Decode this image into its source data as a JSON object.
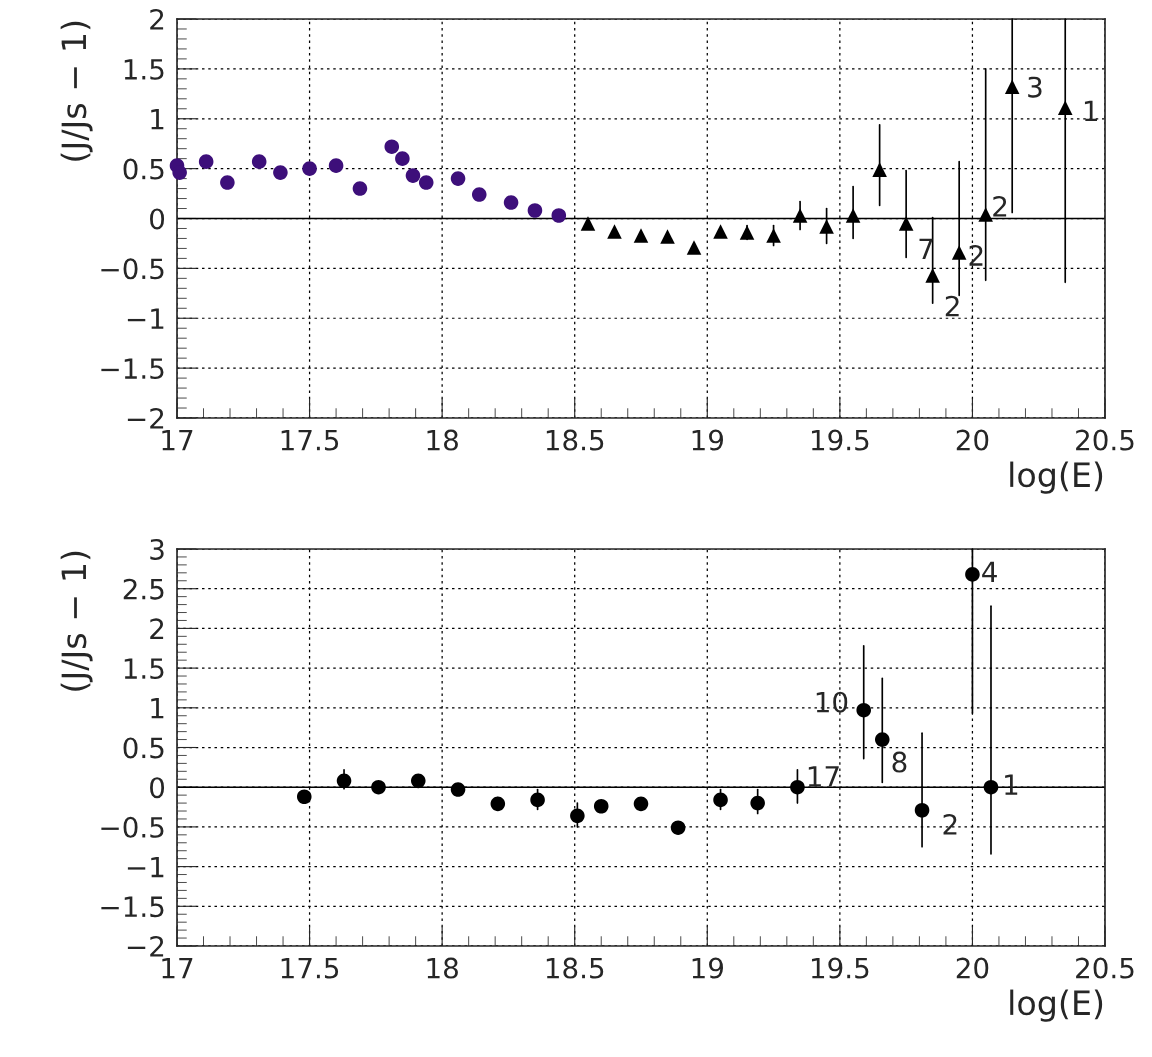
{
  "chart_data": [
    {
      "type": "scatter",
      "xlabel": "log(E)",
      "ylabel": "(J/Js − 1)",
      "xlim": [
        17,
        20.5
      ],
      "ylim": [
        -2,
        2
      ],
      "xticks": [
        17,
        17.5,
        18,
        18.5,
        19,
        19.5,
        20,
        20.5
      ],
      "yticks": [
        -2,
        -1.5,
        -1,
        -0.5,
        0,
        0.5,
        1,
        1.5,
        2
      ],
      "grid": true,
      "legend": false,
      "ref_lines": [
        {
          "axis": "y",
          "value": 0
        }
      ],
      "series": [
        {
          "color": "#3d0f7a",
          "marker": "circle",
          "x": [
            17.0,
            17.01,
            17.11,
            17.19,
            17.31,
            17.39,
            17.5,
            17.6,
            17.69,
            17.81,
            17.85,
            17.89,
            17.94,
            18.06,
            18.14,
            18.26,
            18.35,
            18.44
          ],
          "values": [
            0.53,
            0.46,
            0.57,
            0.36,
            0.57,
            0.46,
            0.5,
            0.53,
            0.3,
            0.72,
            0.6,
            0.43,
            0.36,
            0.4,
            0.24,
            0.16,
            0.08,
            0.03
          ]
        },
        {
          "color": "#000000",
          "marker": "triangle",
          "x": [
            18.55,
            18.65,
            18.75,
            18.85,
            18.95,
            19.05,
            19.15,
            19.25,
            19.35,
            19.45,
            19.55,
            19.65,
            19.75,
            19.85,
            19.95,
            20.05,
            20.15,
            20.35
          ],
          "values": [
            -0.05,
            -0.13,
            -0.17,
            -0.18,
            -0.29,
            -0.13,
            -0.14,
            -0.17,
            0.03,
            -0.08,
            0.03,
            0.49,
            -0.05,
            -0.57,
            -0.34,
            0.04,
            1.32,
            1.11
          ],
          "errors": [
            null,
            null,
            null,
            null,
            null,
            null,
            0.07,
            0.1,
            [
              -0.11,
              0.17
            ],
            [
              -0.25,
              0.1
            ],
            [
              -0.2,
              0.32
            ],
            [
              0.13,
              0.94
            ],
            [
              -0.39,
              0.48
            ],
            [
              -0.85,
              0.01
            ],
            [
              -0.77,
              0.57
            ],
            [
              -0.62,
              1.5
            ],
            [
              0.06,
              2.0
            ],
            [
              -0.64,
              2.0
            ]
          ]
        }
      ],
      "annotations": [
        {
          "text": "7",
          "x": 19.75,
          "y": -0.05
        },
        {
          "text": "2",
          "x": 19.85,
          "y": -0.57
        },
        {
          "text": "2",
          "x": 19.95,
          "y": -0.34
        },
        {
          "text": "2",
          "x": 20.05,
          "y": 0.04
        },
        {
          "text": "3",
          "x": 20.15,
          "y": 1.32
        },
        {
          "text": "1",
          "x": 20.35,
          "y": 1.11
        }
      ]
    },
    {
      "type": "scatter",
      "xlabel": "log(E)",
      "ylabel": "(J/Js − 1)",
      "xlim": [
        17,
        20.5
      ],
      "ylim": [
        -2,
        3
      ],
      "xticks": [
        17,
        17.5,
        18,
        18.5,
        19,
        19.5,
        20,
        20.5
      ],
      "yticks": [
        -2,
        -1.5,
        -1,
        -0.5,
        0,
        0.5,
        1,
        1.5,
        2,
        2.5,
        3
      ],
      "grid": true,
      "legend": false,
      "ref_lines": [
        {
          "axis": "y",
          "value": 0
        }
      ],
      "series": [
        {
          "color": "#000000",
          "marker": "circle",
          "x": [
            17.48,
            17.63,
            17.76,
            17.91,
            18.06,
            18.21,
            18.36,
            18.51,
            18.6,
            18.75,
            18.89,
            19.05,
            19.19,
            19.34,
            19.59,
            19.66,
            19.81,
            20.0,
            20.07
          ],
          "values": [
            -0.12,
            0.08,
            0.0,
            0.08,
            -0.03,
            -0.21,
            -0.16,
            -0.36,
            -0.24,
            -0.21,
            -0.51,
            -0.16,
            -0.2,
            0.0,
            0.97,
            0.6,
            -0.29,
            2.68,
            0.0
          ],
          "errors": [
            [
              -0.2,
              -0.05
            ],
            [
              -0.02,
              0.22
            ],
            null,
            null,
            null,
            [
              -0.29,
              -0.13
            ],
            [
              -0.28,
              -0.03
            ],
            [
              -0.5,
              -0.2
            ],
            null,
            null,
            null,
            [
              -0.28,
              -0.03
            ],
            [
              -0.33,
              -0.03
            ],
            [
              -0.2,
              0.22
            ],
            [
              0.36,
              1.78
            ],
            [
              0.06,
              1.37
            ],
            [
              -0.75,
              0.68
            ],
            [
              0.93,
              3.0
            ],
            [
              -0.84,
              2.28
            ]
          ]
        }
      ],
      "annotations": [
        {
          "text": "17",
          "x": 19.34,
          "y": 0.0
        },
        {
          "text": "10",
          "x": 19.59,
          "y": 0.97
        },
        {
          "text": "8",
          "x": 19.66,
          "y": 0.6
        },
        {
          "text": "2",
          "x": 19.81,
          "y": -0.29
        },
        {
          "text": "4",
          "x": 20.0,
          "y": 2.68
        },
        {
          "text": "1",
          "x": 20.07,
          "y": 0.0
        }
      ]
    }
  ]
}
